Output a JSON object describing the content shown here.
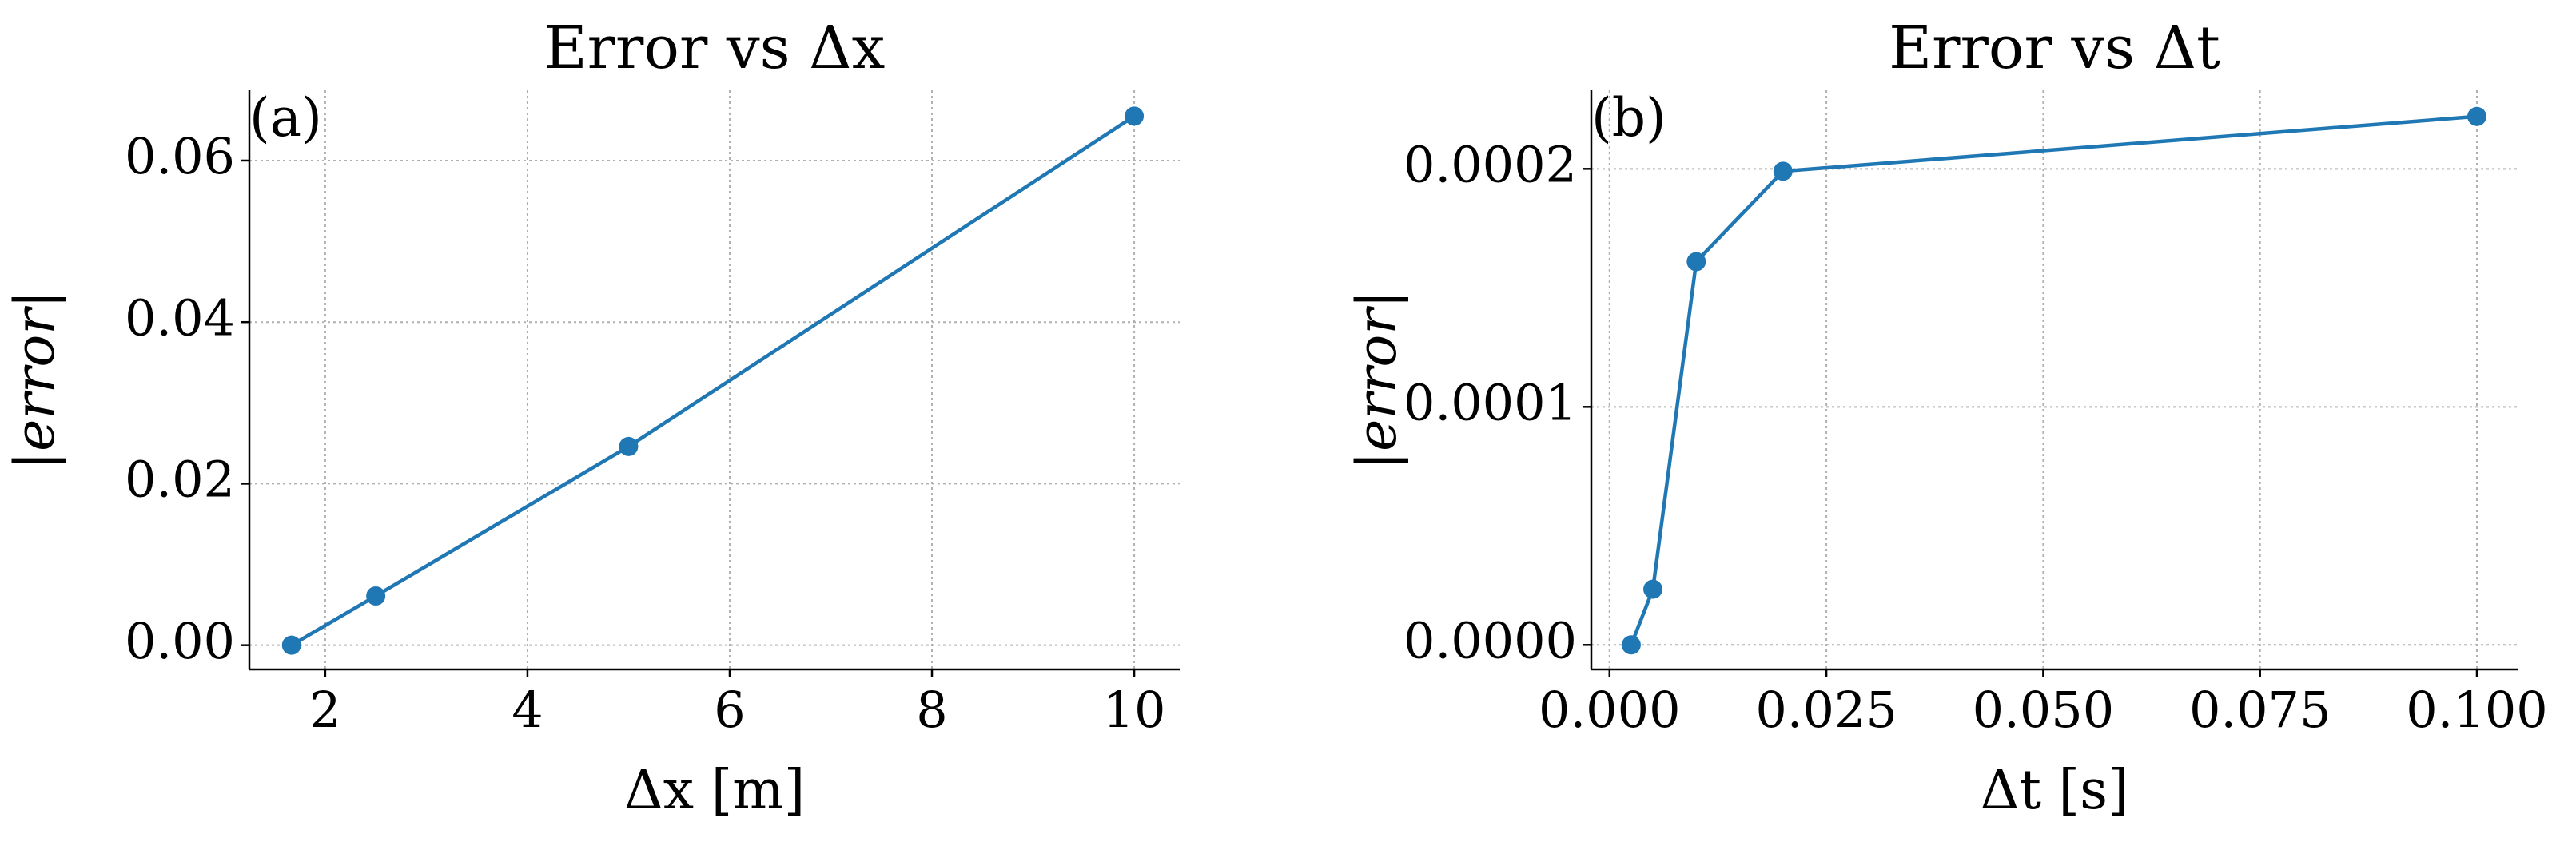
{
  "chart_data": [
    {
      "type": "line",
      "title": "Error vs Δx",
      "annotation": "(a)",
      "xlabel": "Δx [m]",
      "ylabel": "|error|",
      "x": [
        1.667,
        2.5,
        5,
        10
      ],
      "series": [
        {
          "name": "error",
          "color": "#1f77b4",
          "values": [
            0,
            0.0061,
            0.0246,
            0.0655
          ]
        }
      ],
      "xlim": [
        1.25,
        10.45
      ],
      "xticks": [
        2,
        4,
        6,
        8,
        10
      ],
      "ylim": [
        -0.003,
        0.0687
      ],
      "yticks": [
        {
          "value": 0,
          "label": "0.00"
        },
        {
          "value": 0.02,
          "label": "0.02"
        },
        {
          "value": 0.04,
          "label": "0.04"
        },
        {
          "value": 0.06,
          "label": "0.06"
        }
      ],
      "grid": true
    },
    {
      "type": "line",
      "title": "Error vs Δt",
      "annotation": "(b)",
      "xlabel": "Δt [s]",
      "ylabel": "|error|",
      "x": [
        0.0025,
        0.005,
        0.01,
        0.02,
        0.1
      ],
      "series": [
        {
          "name": "error",
          "color": "#1f77b4",
          "values": [
            0,
            2.34e-05,
            0.000161,
            0.000199,
            0.000222
          ]
        }
      ],
      "xlim": [
        -0.0021,
        0.1047
      ],
      "xticks": [
        {
          "value": 0,
          "label": "0.000"
        },
        {
          "value": 0.025,
          "label": "0.025"
        },
        {
          "value": 0.05,
          "label": "0.050"
        },
        {
          "value": 0.075,
          "label": "0.075"
        },
        {
          "value": 0.1,
          "label": "0.100"
        }
      ],
      "ylim": [
        -1.03e-05,
        0.000233
      ],
      "yticks": [
        {
          "value": 0,
          "label": "0.0000"
        },
        {
          "value": 0.0001,
          "label": "0.0001"
        },
        {
          "value": 0.0002,
          "label": "0.0002"
        }
      ],
      "grid": true
    }
  ]
}
